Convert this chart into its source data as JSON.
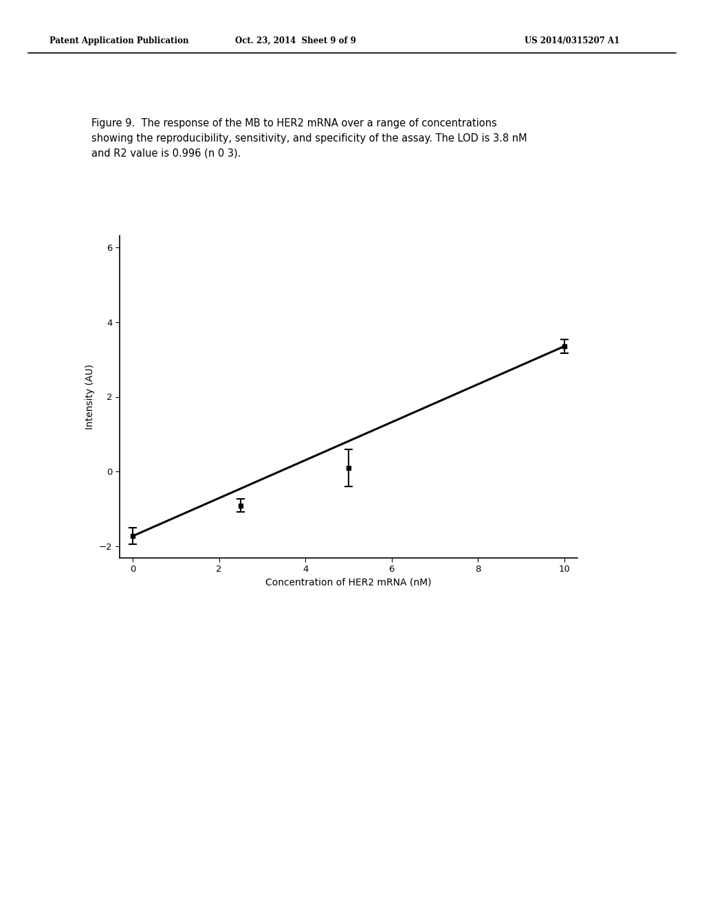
{
  "header_left": "Patent Application Publication",
  "header_center": "Oct. 23, 2014  Sheet 9 of 9",
  "header_right": "US 2014/0315207 A1",
  "figure_caption": "Figure 9.  The response of the MB to HER2 mRNA over a range of concentrations\nshowing the reproducibility, sensitivity, and specificity of the assay. The LOD is 3.8 nM\nand R2 value is 0.996 (n 0 3).",
  "xlabel": "Concentration of HER2 mRNA (nM)",
  "ylabel": "Intensity (AU)",
  "xlim": [
    -0.3,
    10.3
  ],
  "ylim": [
    -2.3,
    6.3
  ],
  "xticks": [
    0,
    2,
    4,
    6,
    8,
    10
  ],
  "yticks": [
    -2,
    0,
    2,
    4,
    6
  ],
  "data_x": [
    0,
    2.5,
    5,
    10
  ],
  "data_y": [
    -1.72,
    -0.9,
    0.1,
    3.35
  ],
  "data_yerr": [
    0.22,
    0.18,
    0.5,
    0.18
  ],
  "line_color": "#000000",
  "marker_color": "#000000",
  "bg_color": "#ffffff",
  "text_color": "#000000",
  "line_slope": 0.507,
  "line_intercept": -1.72
}
